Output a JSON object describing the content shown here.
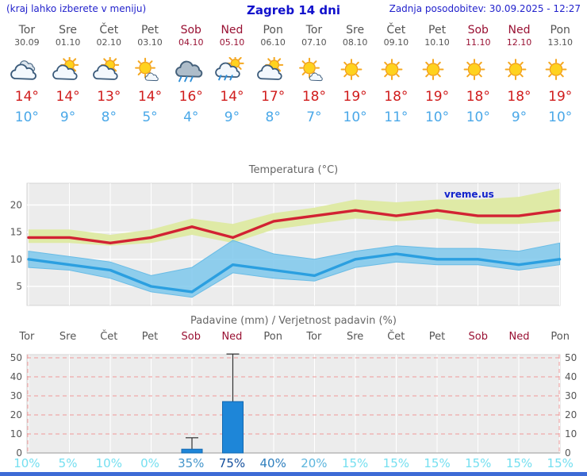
{
  "header": {
    "left_note": "(kraj lahko izberete v meniju)",
    "title": "Zagreb 14 dni",
    "updated": "Zadnja posodobitev: 30.09.2025 - 12:27"
  },
  "watermark": "vreme.us",
  "colors": {
    "accent_blue": "#1122cc",
    "weekday": "#555555",
    "weekend": "#991133",
    "tmax_text": "#d01c1c",
    "tmin_text": "#4aa8e8",
    "plot_bg": "#ececec",
    "bar": "#1e86d8",
    "bar_edge": "#1268b0",
    "footer": "#3d6bd6",
    "tick_text": "#555555",
    "dashed_red": "#f09898"
  },
  "days": [
    {
      "name": "Tor",
      "date": "30.09",
      "weekend": false,
      "icon": "cloudy",
      "tmax": "14°",
      "tmin": "10°",
      "precip_prob": "10%",
      "prob_color": "#74dff0"
    },
    {
      "name": "Sre",
      "date": "01.10",
      "weekend": false,
      "icon": "partly-cloudy",
      "tmax": "14°",
      "tmin": "9°",
      "precip_prob": "5%",
      "prob_color": "#74dff0"
    },
    {
      "name": "Čet",
      "date": "02.10",
      "weekend": false,
      "icon": "partly-cloudy",
      "tmax": "13°",
      "tmin": "8°",
      "precip_prob": "10%",
      "prob_color": "#74dff0"
    },
    {
      "name": "Pet",
      "date": "03.10",
      "weekend": false,
      "icon": "mostly-sunny",
      "tmax": "14°",
      "tmin": "5°",
      "precip_prob": "0%",
      "prob_color": "#74dff0"
    },
    {
      "name": "Sob",
      "date": "04.10",
      "weekend": true,
      "icon": "rain",
      "tmax": "16°",
      "tmin": "4°",
      "precip_prob": "35%",
      "prob_color": "#4596cb"
    },
    {
      "name": "Ned",
      "date": "05.10",
      "weekend": true,
      "icon": "sun-rain",
      "tmax": "14°",
      "tmin": "9°",
      "precip_prob": "75%",
      "prob_color": "#15509d"
    },
    {
      "name": "Pon",
      "date": "06.10",
      "weekend": false,
      "icon": "partly-cloudy",
      "tmax": "17°",
      "tmin": "8°",
      "precip_prob": "40%",
      "prob_color": "#2e7fbe"
    },
    {
      "name": "Tor",
      "date": "07.10",
      "weekend": false,
      "icon": "mostly-sunny",
      "tmax": "18°",
      "tmin": "7°",
      "precip_prob": "20%",
      "prob_color": "#5cb6de"
    },
    {
      "name": "Sre",
      "date": "08.10",
      "weekend": false,
      "icon": "sunny",
      "tmax": "19°",
      "tmin": "10°",
      "precip_prob": "15%",
      "prob_color": "#74dff0"
    },
    {
      "name": "Čet",
      "date": "09.10",
      "weekend": false,
      "icon": "sunny",
      "tmax": "18°",
      "tmin": "11°",
      "precip_prob": "15%",
      "prob_color": "#74dff0"
    },
    {
      "name": "Pet",
      "date": "10.10",
      "weekend": false,
      "icon": "sunny",
      "tmax": "19°",
      "tmin": "10°",
      "precip_prob": "15%",
      "prob_color": "#74dff0"
    },
    {
      "name": "Sob",
      "date": "11.10",
      "weekend": true,
      "icon": "sunny",
      "tmax": "18°",
      "tmin": "10°",
      "precip_prob": "15%",
      "prob_color": "#74dff0"
    },
    {
      "name": "Ned",
      "date": "12.10",
      "weekend": true,
      "icon": "sunny",
      "tmax": "18°",
      "tmin": "9°",
      "precip_prob": "15%",
      "prob_color": "#74dff0"
    },
    {
      "name": "Pon",
      "date": "13.10",
      "weekend": false,
      "icon": "sunny",
      "tmax": "19°",
      "tmin": "10°",
      "precip_prob": "15%",
      "prob_color": "#74dff0"
    }
  ],
  "chart_data": [
    {
      "type": "line",
      "title": "Temperatura (°C)",
      "x_labels": [
        "Tor",
        "Sre",
        "Čet",
        "Pet",
        "Sob",
        "Ned",
        "Pon",
        "Tor",
        "Sre",
        "Čet",
        "Pet",
        "Sob",
        "Ned",
        "Pon"
      ],
      "ylim": [
        1.5,
        24
      ],
      "yticks": [
        5,
        10,
        15,
        20
      ],
      "grid": true,
      "series": [
        {
          "name": "max temperature",
          "color": "#d22233",
          "values": [
            14,
            14,
            13,
            14,
            16,
            14,
            17,
            18,
            19,
            18,
            19,
            18,
            18,
            19
          ]
        },
        {
          "name": "min temperature",
          "color": "#2b9fe0",
          "values": [
            10,
            9,
            8,
            5,
            4,
            9,
            8,
            7,
            10,
            11,
            10,
            10,
            9,
            10
          ]
        }
      ],
      "bands": [
        {
          "name": "max temperature range",
          "color": "#dfeaa6",
          "upper": [
            15.5,
            15.5,
            14.5,
            15.5,
            17.5,
            16.5,
            18.5,
            19.5,
            21,
            20.5,
            21,
            21,
            21.5,
            23
          ],
          "lower": [
            13,
            13,
            12.5,
            13,
            14.5,
            13,
            15.5,
            16.5,
            17.5,
            17,
            17.5,
            16.5,
            16.5,
            17
          ]
        },
        {
          "name": "min temperature range",
          "color": "#7ec8ec",
          "upper": [
            11.5,
            10.5,
            9.5,
            7,
            8.5,
            13.5,
            11,
            10,
            11.5,
            12.5,
            12,
            12,
            11.5,
            13
          ],
          "lower": [
            8.5,
            8,
            6.5,
            4,
            3,
            7.5,
            6.5,
            6,
            8.5,
            9.5,
            9,
            9,
            8,
            9
          ]
        }
      ]
    },
    {
      "type": "bar",
      "title": "Padavine (mm) / Verjetnost padavin (%)",
      "categories": [
        "Tor",
        "Sre",
        "Čet",
        "Pet",
        "Sob",
        "Ned",
        "Pon",
        "Tor",
        "Sre",
        "Čet",
        "Pet",
        "Sob",
        "Ned",
        "Pon"
      ],
      "values": [
        0,
        0,
        0,
        0,
        2,
        27,
        0,
        0,
        0,
        0,
        0,
        0,
        0,
        0
      ],
      "whisker_high": [
        0,
        0,
        0,
        0,
        8,
        52,
        0,
        0,
        0,
        0,
        0,
        0,
        0,
        0
      ],
      "probabilities": [
        "10%",
        "5%",
        "10%",
        "0%",
        "35%",
        "75%",
        "40%",
        "20%",
        "15%",
        "15%",
        "15%",
        "15%",
        "15%",
        "15%"
      ],
      "ylim": [
        0,
        52
      ],
      "yticks": [
        0,
        10,
        20,
        30,
        40,
        50
      ],
      "legend_position": "none"
    }
  ]
}
